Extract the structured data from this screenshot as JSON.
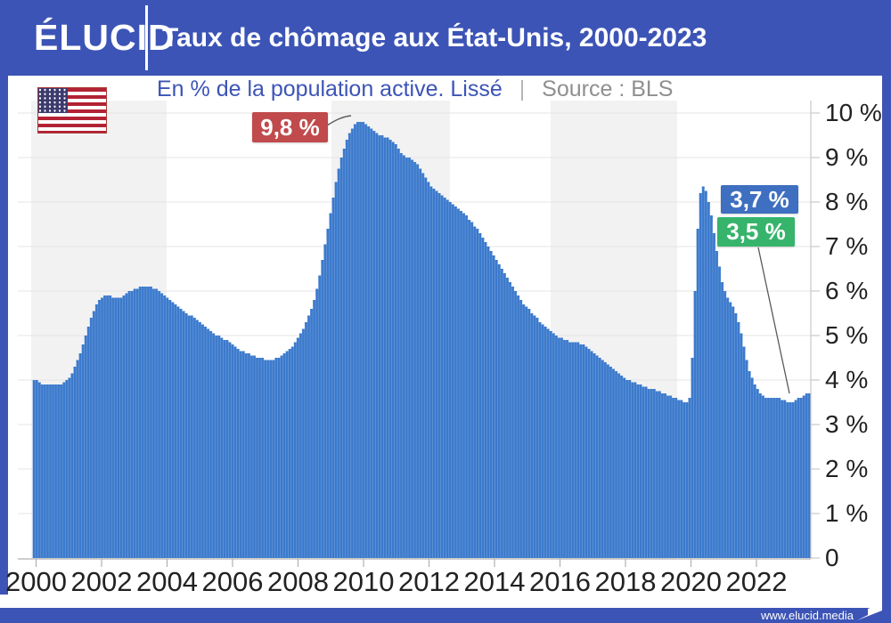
{
  "header": {
    "logo": "ÉLUCID",
    "title": "Taux de chômage aux État-Unis, 2000-2023"
  },
  "subtitle": {
    "text": "En % de la population active. Lissé",
    "separator": "|",
    "source": "Source : BLS"
  },
  "annotations": {
    "peak": {
      "label": "9,8 %",
      "color": "#c04a4c"
    },
    "latest": {
      "label": "3,7 %",
      "color": "#3e6fc0"
    },
    "low": {
      "label": "3,5 %",
      "color": "#37b46c"
    }
  },
  "footer": {
    "url": "www.elucid.media"
  },
  "colors": {
    "header_blue": "#3c54b6",
    "bar_blue": "#3b79cc",
    "bar_gap_blue": "#6b9bd9",
    "band_gray": "#f2f2f3",
    "gridline": "#e4e4e4",
    "axis_gray": "#c9c9c9",
    "text_dark": "#222222"
  },
  "chart_data": {
    "type": "bar",
    "title": "Taux de chômage aux État-Unis, 2000-2023",
    "subtitle": "En % de la population active. Lissé",
    "source": "Source : BLS",
    "frequency": "monthly",
    "x_start": "2000-01",
    "x_end": "2023-10",
    "ylabel": "%",
    "ylim": [
      0,
      10.3
    ],
    "grid": true,
    "y_axis_side": "right",
    "xticks": [
      "2000",
      "2002",
      "2004",
      "2006",
      "2008",
      "2010",
      "2012",
      "2014",
      "2016",
      "2018",
      "2020",
      "2022"
    ],
    "yticks": [
      "10 %",
      "9 %",
      "8 %",
      "7 %",
      "6 %",
      "5 %",
      "4 %",
      "3 %",
      "2 %",
      "1 %",
      "0"
    ],
    "ytick_values": [
      10,
      9,
      8,
      7,
      6,
      5,
      4,
      3,
      2,
      1,
      0
    ],
    "annotated_points": [
      {
        "label": "9,8 %",
        "x": "2010-01",
        "value": 9.8
      },
      {
        "label": "3,7 %",
        "x": "2023-10",
        "value": 3.7
      },
      {
        "label": "3,5 %",
        "x": "2023-02",
        "value": 3.5
      }
    ],
    "values": [
      4.0,
      4.0,
      3.95,
      3.9,
      3.9,
      3.9,
      3.9,
      3.9,
      3.9,
      3.9,
      3.9,
      3.95,
      4.0,
      4.05,
      4.15,
      4.3,
      4.45,
      4.6,
      4.8,
      5.0,
      5.2,
      5.4,
      5.55,
      5.7,
      5.8,
      5.85,
      5.9,
      5.9,
      5.9,
      5.85,
      5.85,
      5.85,
      5.85,
      5.9,
      5.95,
      6.0,
      6.0,
      6.05,
      6.05,
      6.1,
      6.1,
      6.1,
      6.1,
      6.1,
      6.05,
      6.05,
      6.0,
      5.95,
      5.9,
      5.85,
      5.8,
      5.75,
      5.7,
      5.65,
      5.6,
      5.55,
      5.5,
      5.45,
      5.45,
      5.4,
      5.35,
      5.3,
      5.25,
      5.2,
      5.15,
      5.1,
      5.05,
      5.0,
      5.0,
      4.95,
      4.9,
      4.9,
      4.85,
      4.8,
      4.75,
      4.7,
      4.65,
      4.65,
      4.6,
      4.6,
      4.55,
      4.55,
      4.5,
      4.5,
      4.5,
      4.45,
      4.45,
      4.45,
      4.45,
      4.5,
      4.5,
      4.55,
      4.6,
      4.65,
      4.7,
      4.75,
      4.85,
      4.95,
      5.05,
      5.15,
      5.3,
      5.45,
      5.6,
      5.8,
      6.05,
      6.35,
      6.7,
      7.05,
      7.4,
      7.75,
      8.1,
      8.45,
      8.75,
      9.0,
      9.2,
      9.4,
      9.55,
      9.65,
      9.75,
      9.8,
      9.8,
      9.8,
      9.75,
      9.7,
      9.65,
      9.6,
      9.55,
      9.5,
      9.5,
      9.45,
      9.45,
      9.4,
      9.35,
      9.3,
      9.2,
      9.1,
      9.05,
      9.0,
      9.0,
      8.95,
      8.9,
      8.85,
      8.75,
      8.65,
      8.55,
      8.45,
      8.35,
      8.3,
      8.25,
      8.2,
      8.15,
      8.1,
      8.05,
      8.0,
      7.95,
      7.9,
      7.85,
      7.8,
      7.75,
      7.7,
      7.6,
      7.55,
      7.45,
      7.4,
      7.3,
      7.2,
      7.1,
      7.0,
      6.9,
      6.8,
      6.7,
      6.6,
      6.5,
      6.4,
      6.3,
      6.2,
      6.1,
      6.0,
      5.9,
      5.8,
      5.7,
      5.65,
      5.6,
      5.5,
      5.45,
      5.4,
      5.3,
      5.25,
      5.2,
      5.15,
      5.1,
      5.05,
      5.0,
      4.95,
      4.95,
      4.9,
      4.9,
      4.85,
      4.85,
      4.85,
      4.85,
      4.8,
      4.8,
      4.75,
      4.7,
      4.65,
      4.6,
      4.55,
      4.5,
      4.45,
      4.4,
      4.35,
      4.3,
      4.25,
      4.2,
      4.15,
      4.1,
      4.05,
      4.0,
      4.0,
      3.95,
      3.95,
      3.9,
      3.9,
      3.85,
      3.85,
      3.8,
      3.8,
      3.8,
      3.75,
      3.75,
      3.7,
      3.7,
      3.65,
      3.65,
      3.6,
      3.6,
      3.55,
      3.55,
      3.5,
      3.5,
      3.6,
      4.5,
      6.0,
      7.4,
      8.2,
      8.35,
      8.25,
      8.0,
      7.7,
      7.3,
      6.9,
      6.55,
      6.2,
      6.0,
      5.85,
      5.75,
      5.65,
      5.5,
      5.3,
      5.05,
      4.75,
      4.45,
      4.2,
      4.05,
      3.9,
      3.8,
      3.7,
      3.65,
      3.6,
      3.6,
      3.6,
      3.6,
      3.6,
      3.6,
      3.55,
      3.55,
      3.5,
      3.5,
      3.5,
      3.55,
      3.6,
      3.6,
      3.65,
      3.7,
      3.7
    ]
  }
}
